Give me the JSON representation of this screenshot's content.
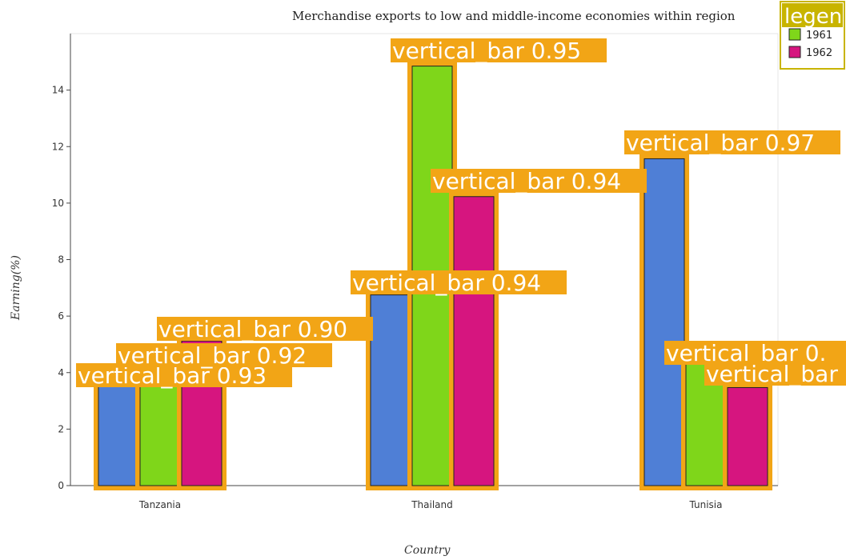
{
  "chart_data": {
    "type": "bar",
    "title": "Merchandise exports to low and middle-income economies within region",
    "xlabel": "Country",
    "ylabel": "Earning(%)",
    "categories": [
      "Tanzania",
      "Thailand",
      "Tunisia"
    ],
    "ylim": [
      0,
      16
    ],
    "yticks": [
      0,
      2,
      4,
      6,
      8,
      10,
      12,
      14
    ],
    "grid": false,
    "legend_position": "top-right",
    "legend_title": "legen",
    "series": [
      {
        "name": "",
        "color": "#4f7fd6",
        "values": [
          3.5,
          6.75,
          11.57
        ]
      },
      {
        "name": "1961",
        "color": "#7fd61a",
        "values": [
          3.6,
          14.85,
          4.3
        ]
      },
      {
        "name": "1962",
        "color": "#d6157f",
        "values": [
          5.12,
          10.23,
          3.47
        ]
      }
    ],
    "annotations": [
      {
        "text": "vertical_bar  0.93",
        "category": "Tanzania",
        "series": 0
      },
      {
        "text": "vertical_bar  0.92",
        "category": "Tanzania",
        "series": 1
      },
      {
        "text": "vertical_bar  0.90",
        "category": "Tanzania",
        "series": 2
      },
      {
        "text": "vertical_bar  0.94",
        "category": "Thailand",
        "series": 0
      },
      {
        "text": "vertical_bar  0.95",
        "category": "Thailand",
        "series": 1
      },
      {
        "text": "vertical_bar  0.94",
        "category": "Thailand",
        "series": 2
      },
      {
        "text": "vertical_bar  0.97",
        "category": "Tunisia",
        "series": 0
      },
      {
        "text": "vertical_bar  0.",
        "category": "Tunisia",
        "series": 1
      },
      {
        "text": "vertical_bar",
        "category": "Tunisia",
        "series": 2
      }
    ],
    "annotation_color": "#f2a516"
  }
}
